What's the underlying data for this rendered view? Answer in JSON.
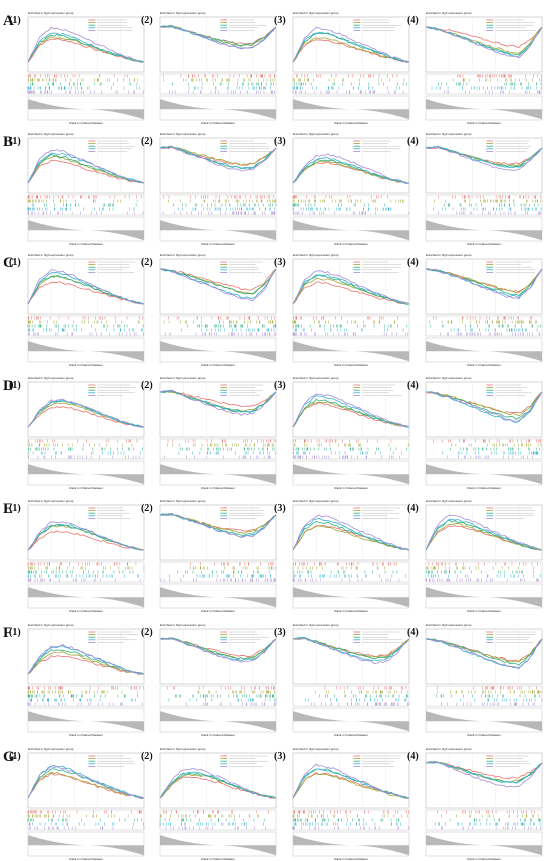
{
  "figure": {
    "rows": [
      "A",
      "B",
      "C",
      "D",
      "E",
      "F",
      "G"
    ],
    "panel_labels": [
      "(1)",
      "(2)",
      "(3)",
      "(4)"
    ],
    "panel_title": "Enriched in high expression group",
    "ylabel_top": "Running enrichment score",
    "ylabel_bottom": "Ranked list metric",
    "xlabel": "Rank in Ordered Dataset"
  },
  "colors": {
    "series": [
      "#e8736f",
      "#a3a533",
      "#2bb07f",
      "#32b1cf",
      "#a78bd8"
    ],
    "ranked_fill": "#b8b8b8",
    "grid": "#e6e6e6",
    "frame": "#9a9a9a"
  },
  "chart_data": {
    "type": "line",
    "description_of_shape": "GSEA running enrichment score curves; 7 rows x 4 panels; each panel has 5 colored gene-set curves, hit bars per set, and a descending ranked-list metric area",
    "x": [
      0,
      0.1,
      0.2,
      0.3,
      0.4,
      0.5,
      0.6,
      0.7,
      0.8,
      0.9,
      1.0
    ],
    "panel_shapes": {
      "peak_early": [
        0,
        0.55,
        0.75,
        0.72,
        0.62,
        0.5,
        0.38,
        0.27,
        0.16,
        0.07,
        0
      ],
      "peak_early_alt": [
        0,
        0.4,
        0.62,
        0.65,
        0.58,
        0.48,
        0.36,
        0.25,
        0.14,
        0.06,
        0
      ],
      "decline_uptick": [
        0,
        0.02,
        -0.08,
        -0.18,
        -0.28,
        -0.38,
        -0.46,
        -0.52,
        -0.5,
        -0.3,
        0
      ],
      "decline_deep": [
        0,
        -0.05,
        -0.14,
        -0.24,
        -0.35,
        -0.46,
        -0.56,
        -0.66,
        -0.7,
        -0.45,
        0
      ]
    },
    "panel_types": [
      [
        "peak_early",
        "decline_uptick",
        "peak_early",
        "decline_deep"
      ],
      [
        "peak_early",
        "decline_uptick",
        "peak_early_alt",
        "decline_uptick"
      ],
      [
        "peak_early",
        "decline_deep",
        "peak_early",
        "decline_deep"
      ],
      [
        "peak_early_alt",
        "decline_uptick",
        "peak_early",
        "decline_deep"
      ],
      [
        "peak_early_alt",
        "decline_uptick",
        "peak_early",
        "peak_early"
      ],
      [
        "peak_early_alt",
        "decline_uptick",
        "decline_uptick",
        "decline_deep"
      ],
      [
        "peak_early",
        "peak_early_alt",
        "peak_early",
        "decline_uptick"
      ]
    ]
  }
}
